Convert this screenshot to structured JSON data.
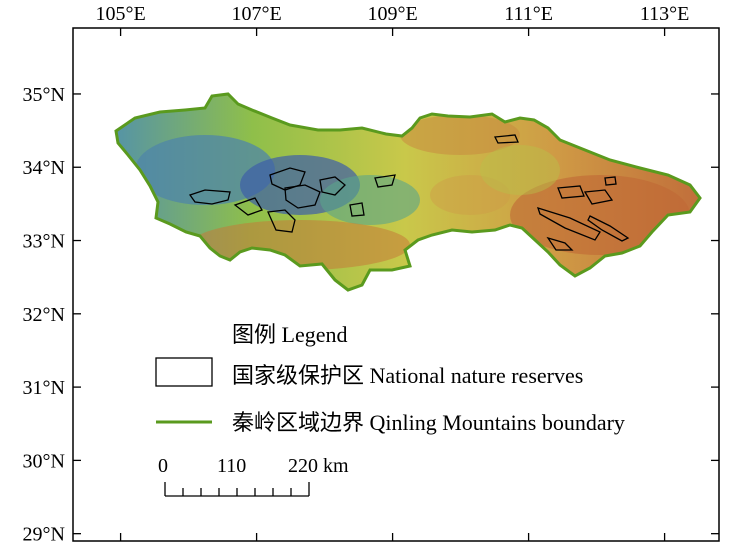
{
  "map": {
    "lon_ticks": [
      "105°E",
      "107°E",
      "109°E",
      "111°E",
      "113°E"
    ],
    "lat_ticks": [
      "35°N",
      "34°N",
      "33°N",
      "32°N",
      "31°N",
      "30°N",
      "29°N"
    ],
    "lon_range": [
      104.3,
      113.8
    ],
    "lat_range": [
      28.9,
      35.9
    ]
  },
  "legend": {
    "title": "图例 Legend",
    "reserves_label": "国家级保护区 National nature reserves",
    "boundary_label": "秦岭区域边界 Qinling Mountains boundary",
    "reserves_color": "#000000",
    "boundary_color": "#5a9a1e"
  },
  "scale_bar": {
    "labels": [
      "0",
      "110",
      "220 km"
    ]
  },
  "colors": {
    "lowland": "#c46a33",
    "hill": "#c9a23a",
    "midslope": "#c7c84a",
    "upland": "#7ebb4d",
    "highland": "#4f9e8a",
    "peak": "#3d5ea8"
  }
}
